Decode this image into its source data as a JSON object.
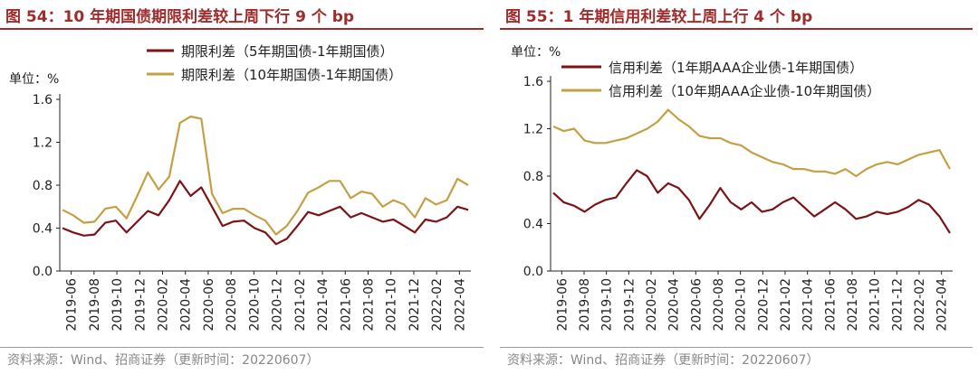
{
  "charts": [
    {
      "id": "left",
      "title": "图 54：10 年期国债期限利差较上周下行 9 个 bp",
      "unit_label": "单位：%",
      "source": "资料来源：Wind、招商证券（更新时间：20220607）",
      "colors": {
        "accent": "#A02B2B",
        "series1": "#7B1416",
        "series2": "#C4A044"
      }
    },
    {
      "id": "right",
      "title": "图 55：1 年期信用利差较上周上行 4 个 bp",
      "unit_label": "单位：%",
      "source": "资料来源：Wind、招商证券（更新时间：20220607）",
      "colors": {
        "accent": "#A02B2B",
        "series1": "#7B1416",
        "series2": "#C4A044"
      }
    }
  ],
  "chart_data": [
    {
      "type": "line",
      "title": "图 54：10 年期国债期限利差较上周下行 9 个 bp",
      "ylabel": "单位：%",
      "ylim": [
        0,
        1.6
      ],
      "yticks": [
        "0.0",
        "0.4",
        "0.8",
        "1.2",
        "1.6"
      ],
      "ytick_values": [
        0,
        0.4,
        0.8,
        1.2,
        1.6
      ],
      "xticks": [
        "2019-06",
        "2019-08",
        "2019-10",
        "2019-12",
        "2020-02",
        "2020-04",
        "2020-06",
        "2020-08",
        "2020-10",
        "2020-12",
        "2021-02",
        "2021-04",
        "2021-06",
        "2021-08",
        "2021-10",
        "2021-12",
        "2022-02",
        "2022-04"
      ],
      "x": [
        "2019-06",
        "2019-07",
        "2019-08",
        "2019-09",
        "2019-10",
        "2019-11",
        "2019-12",
        "2020-01",
        "2020-02",
        "2020-03",
        "2020-04",
        "2020-04b",
        "2020-05",
        "2020-05b",
        "2020-06",
        "2020-07",
        "2020-08",
        "2020-09",
        "2020-10",
        "2020-11",
        "2020-12",
        "2021-01",
        "2021-02",
        "2021-03",
        "2021-04",
        "2021-05",
        "2021-06",
        "2021-07",
        "2021-08",
        "2021-09",
        "2021-10",
        "2021-11",
        "2021-12",
        "2022-01",
        "2022-02",
        "2022-03",
        "2022-04",
        "2022-05",
        "2022-06"
      ],
      "series": [
        {
          "name": "期限利差（5年期国债-1年期国债）",
          "values": [
            0.4,
            0.36,
            0.33,
            0.34,
            0.45,
            0.47,
            0.36,
            0.46,
            0.56,
            0.52,
            0.66,
            0.84,
            0.7,
            0.78,
            0.6,
            0.42,
            0.46,
            0.47,
            0.4,
            0.36,
            0.25,
            0.3,
            0.42,
            0.55,
            0.52,
            0.56,
            0.6,
            0.5,
            0.54,
            0.5,
            0.46,
            0.48,
            0.42,
            0.36,
            0.48,
            0.46,
            0.5,
            0.6,
            0.57
          ]
        },
        {
          "name": "期限利差（10年期国债-1年期国债）",
          "values": [
            0.57,
            0.52,
            0.45,
            0.46,
            0.58,
            0.6,
            0.49,
            0.7,
            0.92,
            0.76,
            0.88,
            1.38,
            1.44,
            1.42,
            0.72,
            0.54,
            0.58,
            0.58,
            0.52,
            0.47,
            0.34,
            0.42,
            0.56,
            0.73,
            0.78,
            0.84,
            0.84,
            0.68,
            0.74,
            0.72,
            0.6,
            0.66,
            0.62,
            0.5,
            0.68,
            0.62,
            0.66,
            0.86,
            0.8
          ]
        }
      ],
      "legend": [
        "期限利差（5年期国债-1年期国债）",
        "期限利差（10年期国债-1年期国债）"
      ],
      "legend_position": "top-center"
    },
    {
      "type": "line",
      "title": "图 55：1 年期信用利差较上周上行 4 个 bp",
      "ylabel": "单位：%",
      "ylim": [
        0,
        1.6
      ],
      "yticks": [
        "0.0",
        "0.4",
        "0.8",
        "1.2",
        "1.6"
      ],
      "ytick_values": [
        0,
        0.4,
        0.8,
        1.2,
        1.6
      ],
      "xticks": [
        "2019-06",
        "2019-08",
        "2019-10",
        "2019-12",
        "2020-02",
        "2020-04",
        "2020-06",
        "2020-08",
        "2020-10",
        "2020-12",
        "2021-02",
        "2021-04",
        "2021-06",
        "2021-08",
        "2021-10",
        "2021-12",
        "2022-02",
        "2022-04"
      ],
      "x": [
        "2019-06",
        "2019-07",
        "2019-08",
        "2019-09",
        "2019-10",
        "2019-11",
        "2019-12",
        "2020-01",
        "2020-02",
        "2020-03",
        "2020-04",
        "2020-04b",
        "2020-05",
        "2020-05b",
        "2020-06",
        "2020-07",
        "2020-08",
        "2020-09",
        "2020-10",
        "2020-11",
        "2020-12",
        "2021-01",
        "2021-02",
        "2021-03",
        "2021-04",
        "2021-05",
        "2021-06",
        "2021-07",
        "2021-08",
        "2021-09",
        "2021-10",
        "2021-11",
        "2021-12",
        "2022-01",
        "2022-02",
        "2022-03",
        "2022-04",
        "2022-05",
        "2022-06"
      ],
      "series": [
        {
          "name": "信用利差（1年期AAA企业债-1年期国债）",
          "values": [
            0.66,
            0.58,
            0.55,
            0.5,
            0.56,
            0.6,
            0.62,
            0.74,
            0.85,
            0.8,
            0.66,
            0.74,
            0.7,
            0.6,
            0.44,
            0.56,
            0.7,
            0.58,
            0.52,
            0.58,
            0.5,
            0.52,
            0.58,
            0.62,
            0.54,
            0.46,
            0.52,
            0.58,
            0.52,
            0.44,
            0.46,
            0.5,
            0.48,
            0.5,
            0.54,
            0.6,
            0.56,
            0.46,
            0.32
          ]
        },
        {
          "name": "信用利差（10年期AAA企业债-10年期国债）",
          "values": [
            1.22,
            1.18,
            1.2,
            1.1,
            1.08,
            1.08,
            1.1,
            1.12,
            1.16,
            1.2,
            1.26,
            1.36,
            1.28,
            1.22,
            1.14,
            1.12,
            1.12,
            1.08,
            1.06,
            1.0,
            0.96,
            0.92,
            0.9,
            0.86,
            0.86,
            0.84,
            0.84,
            0.82,
            0.86,
            0.8,
            0.86,
            0.9,
            0.92,
            0.9,
            0.94,
            0.98,
            1.0,
            1.02,
            0.86
          ]
        }
      ],
      "legend": [
        "信用利差（1年期AAA企业债-1年期国债）",
        "信用利差（10年期AAA企业债-10年期国债）"
      ],
      "legend_position": "top-center"
    }
  ]
}
